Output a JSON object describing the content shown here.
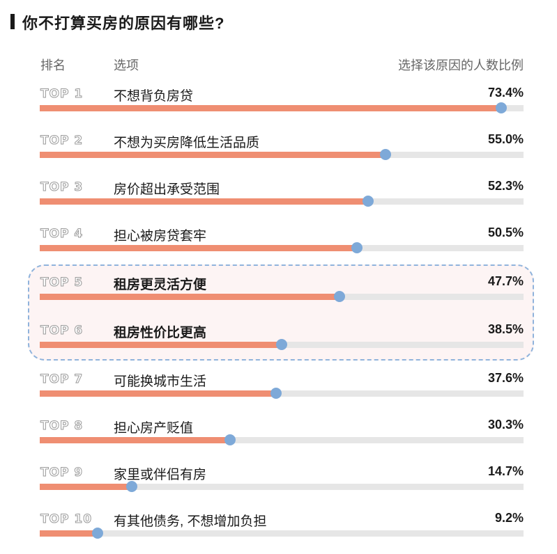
{
  "title": "你不打算买房的原因有哪些?",
  "headers": {
    "rank": "排名",
    "option": "选项",
    "ratio": "选择该原因的人数比例"
  },
  "colors": {
    "bar": "#ef8e72",
    "track": "#e6e6e6",
    "dot": "#7ea9d8",
    "highlight_border": "#8fb3dc",
    "highlight_bg": "#fdf4f4"
  },
  "chart_data": {
    "type": "bar",
    "orientation": "horizontal",
    "title": "你不打算买房的原因有哪些?",
    "xlim": [
      0,
      77
    ],
    "highlighted_ranks": [
      "TOP 5",
      "TOP 6"
    ],
    "rows": [
      {
        "rank": "TOP 1",
        "label": "不想背负房贷",
        "value": 73.4,
        "pct": "73.4%"
      },
      {
        "rank": "TOP 2",
        "label": "不想为买房降低生活品质",
        "value": 55.0,
        "pct": "55.0%"
      },
      {
        "rank": "TOP 3",
        "label": "房价超出承受范围",
        "value": 52.3,
        "pct": "52.3%"
      },
      {
        "rank": "TOP 4",
        "label": "担心被房贷套牢",
        "value": 50.5,
        "pct": "50.5%"
      },
      {
        "rank": "TOP 5",
        "label": "租房更灵活方便",
        "value": 47.7,
        "pct": "47.7%"
      },
      {
        "rank": "TOP 6",
        "label": "租房性价比更高",
        "value": 38.5,
        "pct": "38.5%"
      },
      {
        "rank": "TOP 7",
        "label": "可能换城市生活",
        "value": 37.6,
        "pct": "37.6%"
      },
      {
        "rank": "TOP 8",
        "label": "担心房产贬值",
        "value": 30.3,
        "pct": "30.3%"
      },
      {
        "rank": "TOP 9",
        "label": "家里或伴侣有房",
        "value": 14.7,
        "pct": "14.7%"
      },
      {
        "rank": "TOP 10",
        "label": "有其他债务, 不想增加负担",
        "value": 9.2,
        "pct": "9.2%"
      }
    ]
  }
}
